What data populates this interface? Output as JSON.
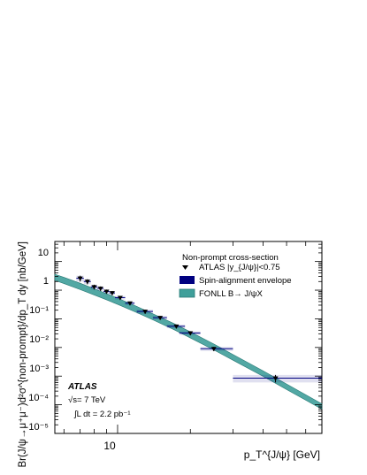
{
  "chart_data": {
    "type": "scatter",
    "title": "",
    "xlabel": "p_T^{J/ψ} [GeV]",
    "ylabel": "Br(J/ψ→μ⁺μ⁻)d²σ^{non-prompt}/dp_T dy [nb/GeV]",
    "xscale": "log",
    "yscale": "log",
    "xlim": [
      5.5,
      70
    ],
    "ylim": [
      1e-05,
      50
    ],
    "x_tick_labels": [
      "10"
    ],
    "y_tick_labels": [
      "10⁻⁵",
      "10⁻⁴",
      "10⁻³",
      "10⁻²",
      "10⁻¹",
      "1",
      "10"
    ],
    "legend_title": "Non-prompt cross-section",
    "legend_position": "top-right",
    "series": [
      {
        "name": "ATLAS |y_{J/ψ}|<0.75",
        "kind": "points",
        "marker": "triangle-down",
        "color": "#000000",
        "x": [
          7.0,
          7.5,
          8.0,
          8.5,
          9.0,
          9.5,
          10.25,
          11.25,
          13.0,
          15.0,
          17.5,
          20.0,
          25.0,
          45.0
        ],
        "xerr_low": [
          0.25,
          0.25,
          0.25,
          0.25,
          0.25,
          0.25,
          0.5,
          0.5,
          1.0,
          1.0,
          1.5,
          2.0,
          3.0,
          15.0
        ],
        "xerr_high": [
          0.25,
          0.25,
          0.25,
          0.25,
          0.25,
          0.25,
          0.5,
          0.5,
          1.0,
          1.0,
          1.5,
          2.0,
          5.0,
          25.0
        ],
        "y": [
          2.6,
          2.0,
          1.3,
          1.15,
          0.9,
          0.8,
          0.55,
          0.35,
          0.18,
          0.11,
          0.055,
          0.032,
          0.009,
          0.00085
        ],
        "yerr": [
          0.6,
          0.4,
          0.25,
          0.2,
          0.15,
          0.12,
          0.08,
          0.05,
          0.03,
          0.015,
          0.008,
          0.005,
          0.0015,
          0.00025
        ]
      },
      {
        "name": "Spin-alignment envelope",
        "kind": "error-box",
        "color": "#000080"
      },
      {
        "name": "FONLL B→ J/ψX",
        "kind": "band",
        "color": "#3f9f9a",
        "x": [
          5.5,
          6,
          7,
          8,
          9,
          10,
          12,
          14,
          17,
          20,
          25,
          30,
          40,
          50,
          60,
          70
        ],
        "y_low": [
          2.2,
          1.7,
          1.05,
          0.68,
          0.46,
          0.32,
          0.165,
          0.092,
          0.043,
          0.0215,
          0.0082,
          0.0036,
          0.00098,
          0.00034,
          0.000145,
          7e-05
        ],
        "y_high": [
          3.6,
          2.8,
          1.75,
          1.12,
          0.76,
          0.53,
          0.272,
          0.15,
          0.07,
          0.035,
          0.0132,
          0.0057,
          0.00153,
          0.00053,
          0.000225,
          0.000108
        ]
      }
    ],
    "annotations": {
      "experiment": "ATLAS",
      "energy": "√s= 7 TeV",
      "lumi": "∫L dt = 2.2 pb⁻¹"
    }
  }
}
